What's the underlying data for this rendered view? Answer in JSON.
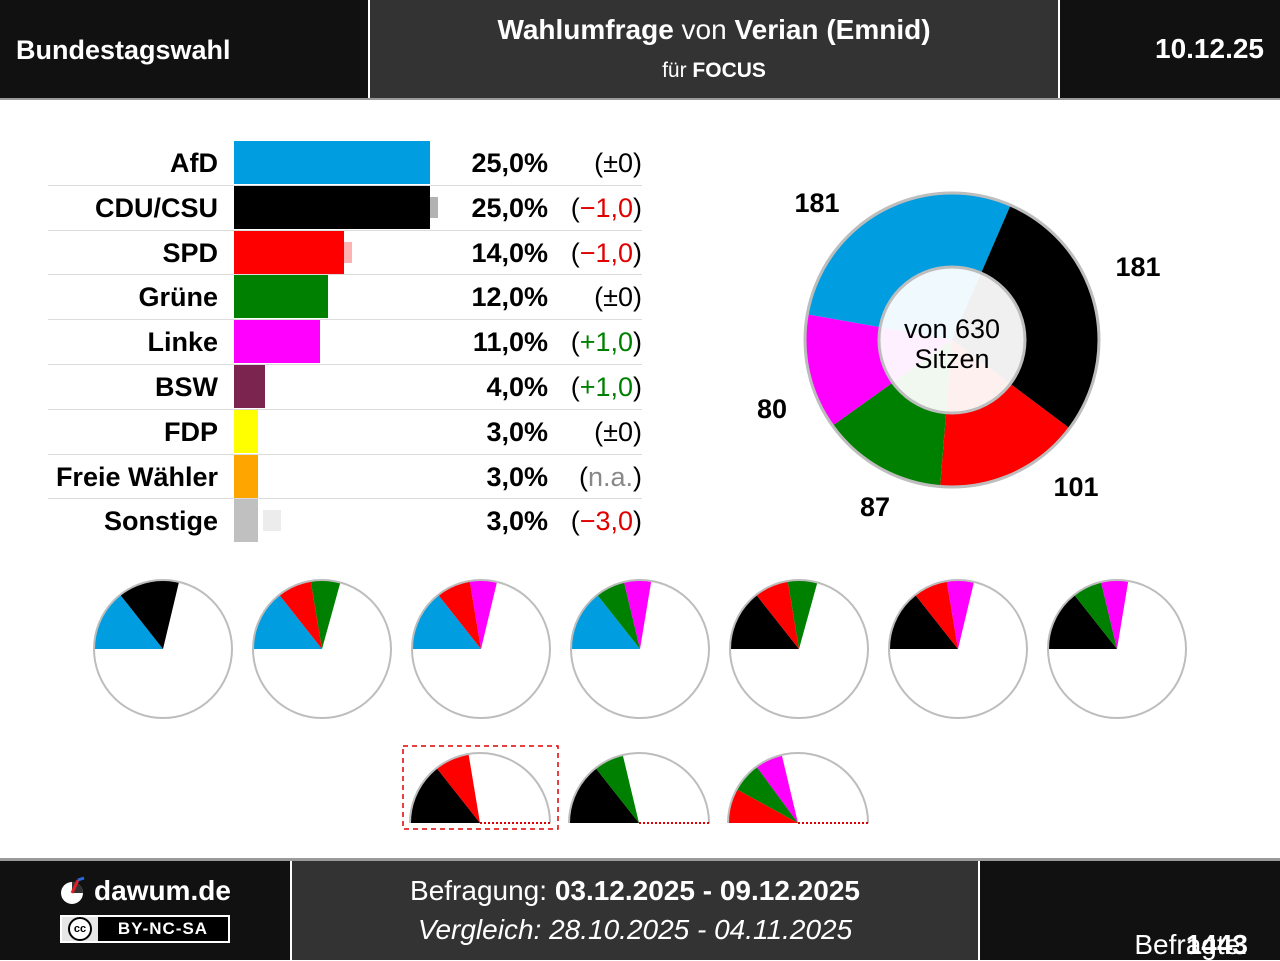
{
  "header": {
    "left_title": "Bundestagswahl",
    "poll_word": "Wahlumfrage",
    "von_word": "von",
    "institute": "Verian (Emnid)",
    "fuer_word": "für",
    "client": "FOCUS",
    "date": "10.12.25"
  },
  "chart_data": [
    {
      "type": "bar",
      "orientation": "horizontal",
      "categories": [
        "AfD",
        "CDU/CSU",
        "SPD",
        "Grüne",
        "Linke",
        "BSW",
        "FDP",
        "Freie Wähler",
        "Sonstige"
      ],
      "values": [
        25.0,
        25.0,
        14.0,
        12.0,
        11.0,
        4.0,
        3.0,
        3.0,
        3.0
      ],
      "previous_values": [
        25.0,
        26.0,
        15.0,
        12.0,
        10.0,
        3.0,
        3.0,
        null,
        6.0
      ],
      "value_labels": [
        "25,0%",
        "25,0%",
        "14,0%",
        "12,0%",
        "11,0%",
        "4,0%",
        "3,0%",
        "3,0%",
        "3,0%"
      ],
      "change_labels": [
        "±0",
        "−1,0",
        "−1,0",
        "±0",
        "+1,0",
        "+1,0",
        "±0",
        "n.a.",
        "−3,0"
      ],
      "change_kind": [
        "zero",
        "down",
        "down",
        "zero",
        "up",
        "up",
        "zero",
        "na",
        "down"
      ],
      "colors": [
        "#009ee0",
        "#000000",
        "#ff0000",
        "#008000",
        "#ff00ff",
        "#7b2450",
        "#ffff00",
        "#ffa500",
        "#c0c0c0"
      ],
      "xlim": [
        0,
        25
      ]
    },
    {
      "type": "pie",
      "style": "donut",
      "categories": [
        "AfD",
        "CDU/CSU",
        "SPD",
        "Grüne",
        "Linke"
      ],
      "values": [
        181,
        181,
        101,
        87,
        80
      ],
      "colors": [
        "#009ee0",
        "#000000",
        "#ff0000",
        "#008000",
        "#ff00ff"
      ],
      "center_line1": "von 630",
      "center_line2": "Sitzen",
      "total": 630
    },
    {
      "type": "pie",
      "style": "coalition-half-pies",
      "majority": 316,
      "rows": [
        [
          {
            "parties": [
              "AfD",
              "CDU/CSU"
            ],
            "seats": [
              181,
              181
            ]
          },
          {
            "parties": [
              "AfD",
              "SPD",
              "Grüne"
            ],
            "seats": [
              181,
              101,
              87
            ]
          },
          {
            "parties": [
              "AfD",
              "SPD",
              "Linke"
            ],
            "seats": [
              181,
              101,
              80
            ]
          },
          {
            "parties": [
              "AfD",
              "Grüne",
              "Linke"
            ],
            "seats": [
              181,
              87,
              80
            ]
          },
          {
            "parties": [
              "CDU/CSU",
              "SPD",
              "Grüne"
            ],
            "seats": [
              181,
              101,
              87
            ]
          },
          {
            "parties": [
              "CDU/CSU",
              "SPD",
              "Linke"
            ],
            "seats": [
              181,
              101,
              80
            ]
          },
          {
            "parties": [
              "CDU/CSU",
              "Grüne",
              "Linke"
            ],
            "seats": [
              181,
              87,
              80
            ]
          }
        ],
        [
          {
            "parties": [
              "CDU/CSU",
              "SPD"
            ],
            "seats": [
              181,
              101
            ],
            "highlighted": true
          },
          {
            "parties": [
              "CDU/CSU",
              "Grüne"
            ],
            "seats": [
              181,
              87
            ],
            "highlighted": false
          },
          {
            "parties": [
              "SPD",
              "Grüne",
              "Linke"
            ],
            "seats": [
              101,
              87,
              80
            ],
            "highlighted": false
          }
        ]
      ]
    }
  ],
  "footer": {
    "site": "dawum.de",
    "cc_symbol": "cc",
    "license": "BY-NC-SA",
    "survey_label": "Befragung:",
    "survey_period": "03.12.2025 - 09.12.2025",
    "compare_label": "Vergleich:",
    "compare_period": "28.10.2025 - 04.11.2025",
    "respondents_label": "Befragte:",
    "respondents": "1443"
  }
}
